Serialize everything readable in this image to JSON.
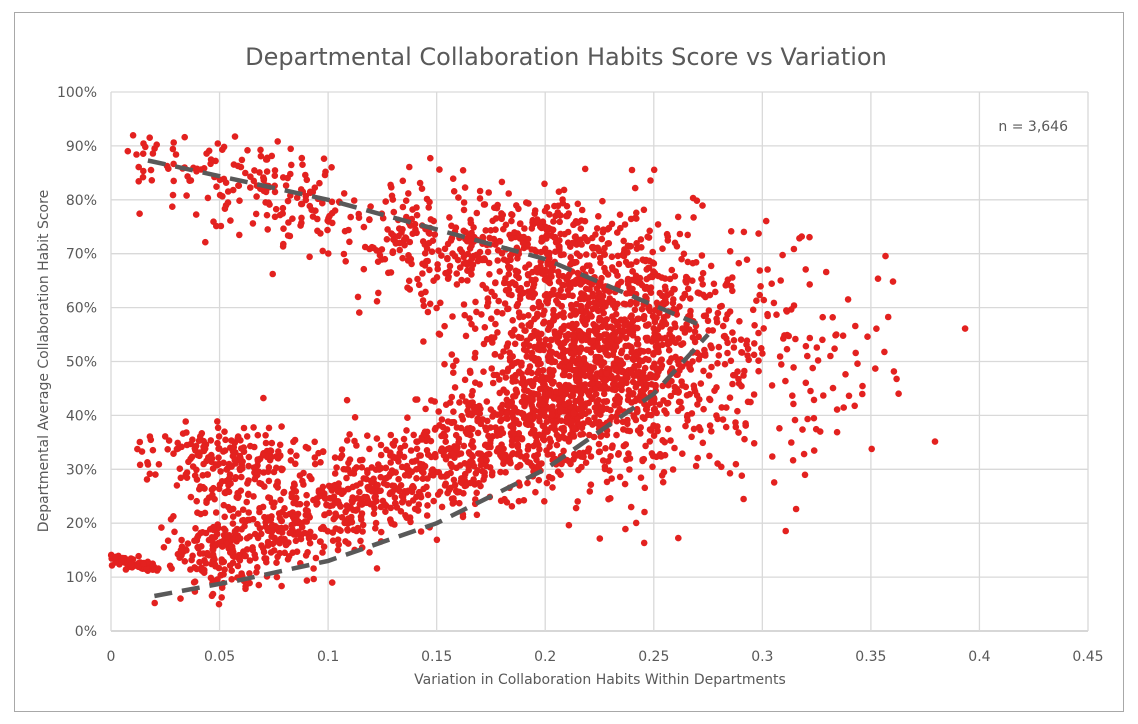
{
  "chart_data": {
    "type": "scatter",
    "title": "Departmental Collaboration Habits Score vs Variation",
    "xlabel": "Variation in Collaboration Habits Within Departments",
    "ylabel": "Departmental Average Collaboration Habit Score",
    "annotation": "n = 3,646",
    "n": 3646,
    "xlim": [
      0,
      0.45
    ],
    "ylim": [
      0,
      100
    ],
    "x_ticks": [
      "0",
      "0.05",
      "0.1",
      "0.15",
      "0.2",
      "0.25",
      "0.3",
      "0.35",
      "0.4",
      "0.45"
    ],
    "y_ticks": [
      "0%",
      "10%",
      "20%",
      "30%",
      "40%",
      "50%",
      "60%",
      "70%",
      "80%",
      "90%",
      "100%"
    ],
    "grid": true,
    "point_color": "#e3211f",
    "trend_color": "#595959",
    "clusters": [
      {
        "name": "start-line",
        "kind": "line",
        "x": [
          0.0,
          0.022
        ],
        "y": [
          13.6,
          11.5
        ],
        "sd": 0.5,
        "n": 70
      },
      {
        "name": "upper-band",
        "kind": "band",
        "x": [
          0.013,
          0.27
        ],
        "y": [
          89,
          58
        ],
        "sd": 5,
        "n": 520
      },
      {
        "name": "upper-right",
        "kind": "blob",
        "cx": 0.2,
        "cy": 70,
        "sx": 0.035,
        "sy": 7,
        "n": 380
      },
      {
        "name": "left-cluster",
        "kind": "blob",
        "cx": 0.055,
        "cy": 32,
        "sx": 0.018,
        "sy": 3.5,
        "n": 200
      },
      {
        "name": "lower-band",
        "kind": "band",
        "x": [
          0.03,
          0.21
        ],
        "y": [
          12,
          40
        ],
        "sd": 5,
        "n": 1050
      },
      {
        "name": "central-blob",
        "kind": "blob",
        "cx": 0.22,
        "cy": 48,
        "sx": 0.025,
        "sy": 9,
        "n": 1150
      },
      {
        "name": "right-tail",
        "kind": "blob",
        "cx": 0.29,
        "cy": 50,
        "sx": 0.035,
        "sy": 11,
        "n": 276
      }
    ],
    "trendlines": [
      {
        "name": "upper-trend",
        "points": [
          [
            0.017,
            87.3
          ],
          [
            0.1,
            80
          ],
          [
            0.2,
            69
          ],
          [
            0.27,
            57
          ]
        ]
      },
      {
        "name": "lower-trend",
        "points": [
          [
            0.02,
            6.5
          ],
          [
            0.06,
            9.5
          ],
          [
            0.1,
            13
          ],
          [
            0.15,
            20
          ],
          [
            0.2,
            30
          ],
          [
            0.25,
            44
          ],
          [
            0.275,
            55
          ]
        ]
      }
    ]
  }
}
